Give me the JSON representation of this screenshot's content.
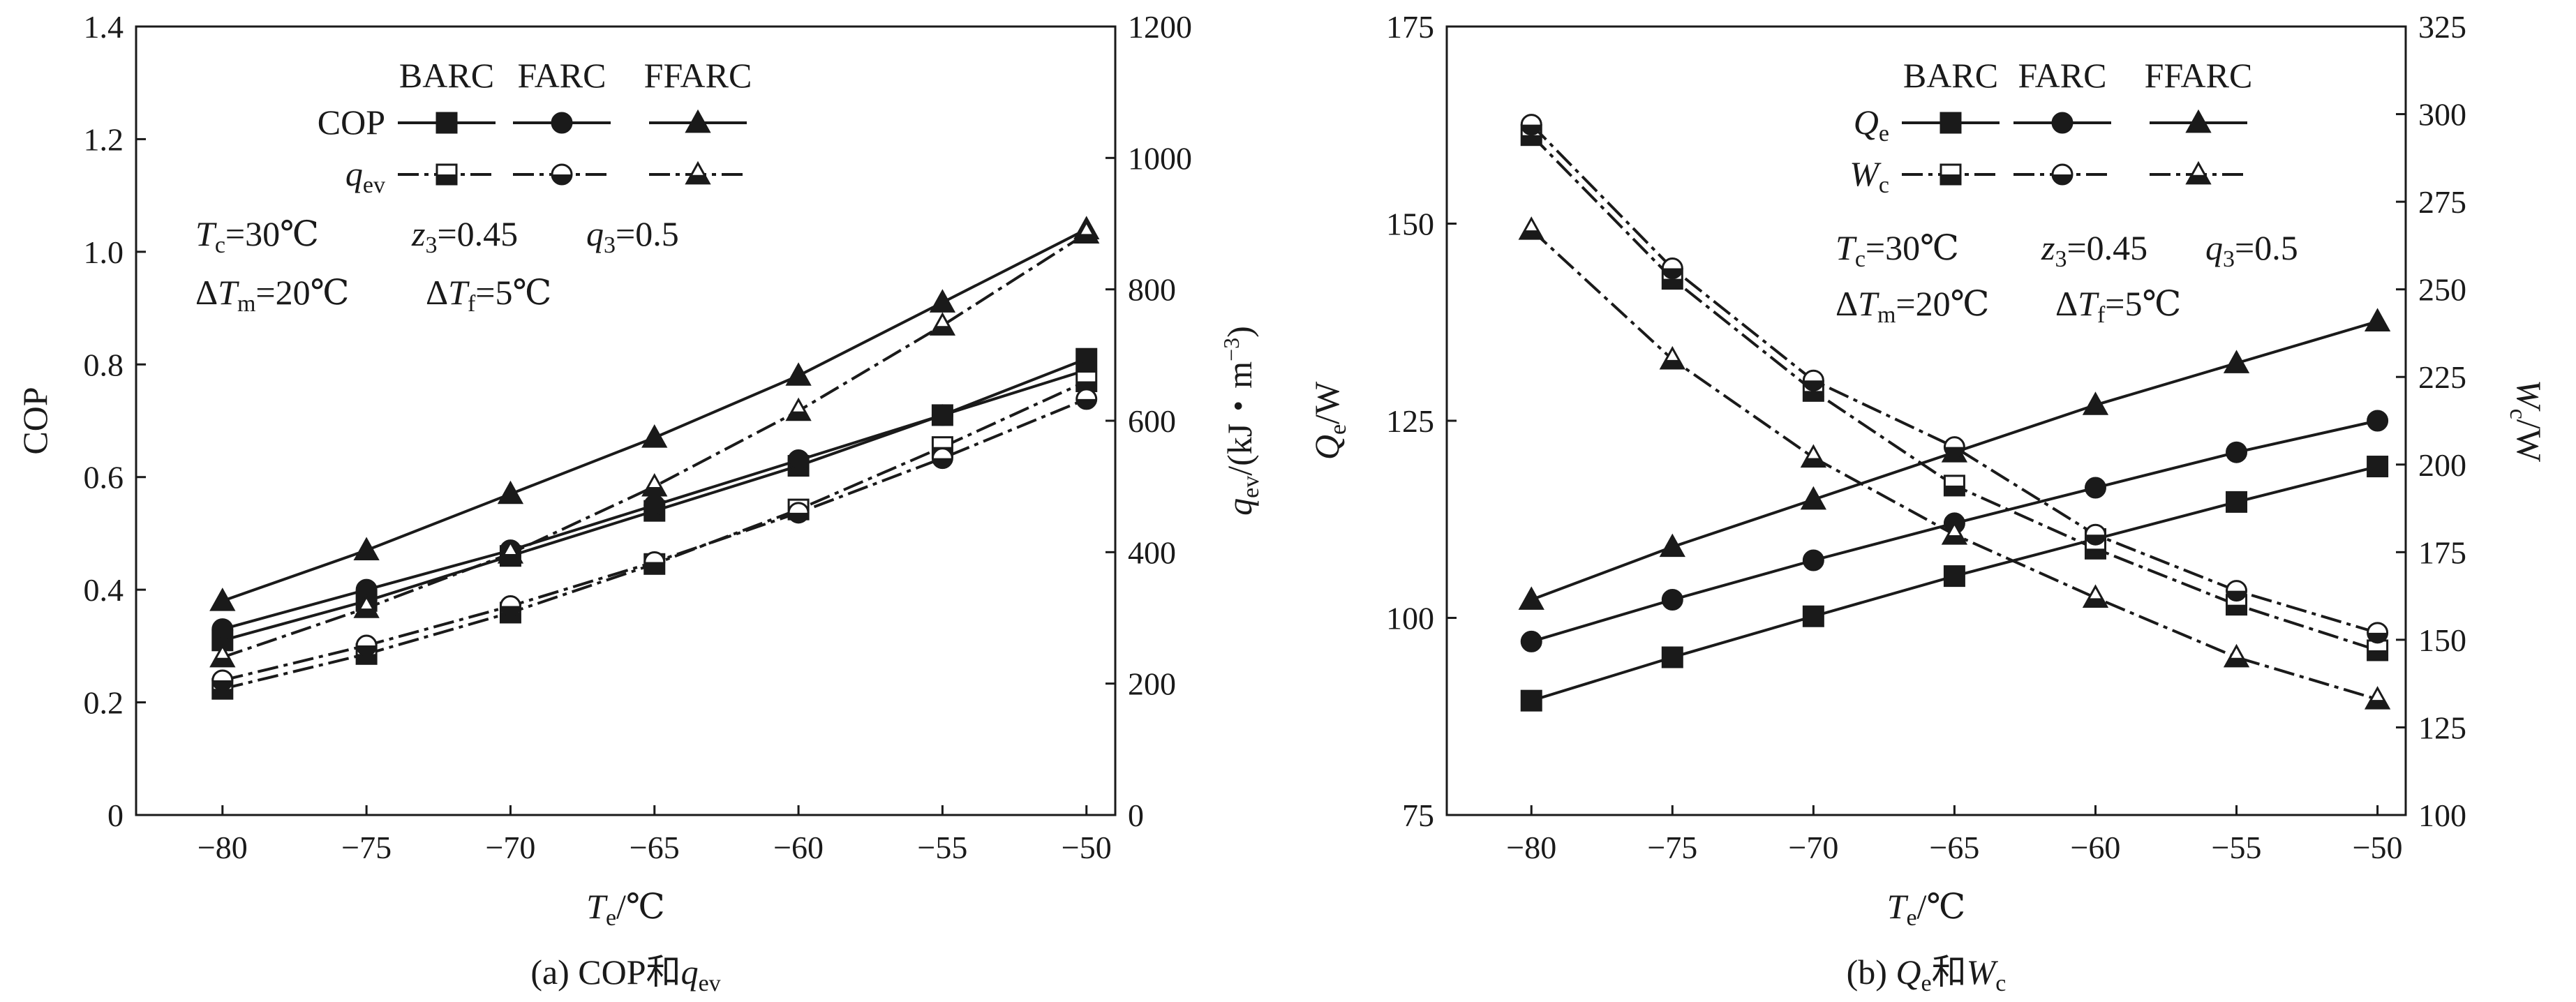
{
  "chart_data": [
    {
      "panel": "a",
      "type": "line",
      "caption": {
        "prefix": "(a) COP和",
        "var": "q",
        "sub": "ev"
      },
      "x": [
        -80,
        -75,
        -70,
        -65,
        -60,
        -55,
        -50
      ],
      "xlim": [
        -83,
        -49
      ],
      "x_ticks": [
        -80,
        -75,
        -70,
        -65,
        -60,
        -55,
        -50
      ],
      "xlabel": {
        "var": "T",
        "sub": "e",
        "rest": "/℃"
      },
      "y_left": {
        "label": "COP",
        "lim": [
          0,
          1.4
        ],
        "ticks": [
          "0",
          "0.2",
          "0.4",
          "0.6",
          "0.8",
          "1.0",
          "1.2",
          "1.4"
        ]
      },
      "y_right": {
        "label_var": "q",
        "label_sub": "ev",
        "label_rest": "/(kJ・m",
        "label_sup": "−3",
        "label_close": ")",
        "lim": [
          0,
          1200
        ],
        "ticks": [
          "0",
          "200",
          "400",
          "600",
          "800",
          "1000",
          "1200"
        ]
      },
      "legend": {
        "columns": [
          "BARC",
          "FARC",
          "FFARC"
        ],
        "rows": [
          {
            "label_var": "COP",
            "label_sub": "",
            "style": "solid"
          },
          {
            "label_var": "q",
            "label_sub": "ev",
            "style": "dashdot"
          }
        ]
      },
      "annotations": {
        "line1": [
          {
            "var": "T",
            "sub": "c",
            "rest": "=30℃"
          },
          {
            "var": "z",
            "sub": "3",
            "rest": "=0.45"
          },
          {
            "var": "q",
            "sub": "3",
            "rest": "=0.5"
          }
        ],
        "line2": [
          {
            "pre": "Δ",
            "var": "T",
            "sub": "m",
            "rest": "=20℃"
          },
          {
            "pre": "Δ",
            "var": "T",
            "sub": "f",
            "rest": "=5℃"
          }
        ]
      },
      "series": [
        {
          "name": "COP BARC",
          "axis": "left",
          "style": "solid",
          "marker": "square",
          "filled": true,
          "values": [
            0.31,
            0.38,
            0.46,
            0.54,
            0.62,
            0.71,
            0.81
          ]
        },
        {
          "name": "COP FARC",
          "axis": "left",
          "style": "solid",
          "marker": "circle",
          "filled": true,
          "values": [
            0.33,
            0.4,
            0.47,
            0.55,
            0.63,
            0.71,
            0.79
          ]
        },
        {
          "name": "COP FFARC",
          "axis": "left",
          "style": "solid",
          "marker": "triangle",
          "filled": true,
          "values": [
            0.38,
            0.47,
            0.57,
            0.67,
            0.78,
            0.91,
            1.04
          ]
        },
        {
          "name": "qev BARC",
          "axis": "right",
          "style": "dashdot",
          "marker": "square",
          "filled": false,
          "values": [
            192,
            245,
            308,
            382,
            465,
            560,
            660
          ]
        },
        {
          "name": "qev FARC",
          "axis": "right",
          "style": "dashdot",
          "marker": "circle",
          "filled": false,
          "values": [
            205,
            258,
            318,
            385,
            460,
            543,
            633
          ]
        },
        {
          "name": "qev FFARC",
          "axis": "right",
          "style": "dashdot",
          "marker": "triangle",
          "filled": false,
          "values": [
            240,
            315,
            398,
            500,
            615,
            745,
            885
          ]
        }
      ]
    },
    {
      "panel": "b",
      "type": "line",
      "caption": {
        "prefix": "(b) ",
        "var1": "Q",
        "sub1": "e",
        "mid": "和",
        "var2": "W",
        "sub2": "c"
      },
      "x": [
        -80,
        -75,
        -70,
        -65,
        -60,
        -55,
        -50
      ],
      "xlim": [
        -83,
        -49
      ],
      "x_ticks": [
        -80,
        -75,
        -70,
        -65,
        -60,
        -55,
        -50
      ],
      "xlabel": {
        "var": "T",
        "sub": "e",
        "rest": "/℃"
      },
      "y_left": {
        "label_var": "Q",
        "label_sub": "e",
        "label_rest": "/W",
        "lim": [
          75,
          175
        ],
        "ticks": [
          "75",
          "100",
          "125",
          "150",
          "175"
        ]
      },
      "y_right": {
        "label_var": "W",
        "label_sub": "c",
        "label_rest": "/W",
        "lim": [
          100,
          325
        ],
        "ticks": [
          "100",
          "125",
          "150",
          "175",
          "200",
          "225",
          "250",
          "275",
          "300",
          "325"
        ]
      },
      "legend": {
        "columns": [
          "BARC",
          "FARC",
          "FFARC"
        ],
        "rows": [
          {
            "label_var": "Q",
            "label_sub": "e",
            "style": "solid"
          },
          {
            "label_var": "W",
            "label_sub": "c",
            "style": "dashdot"
          }
        ]
      },
      "annotations": {
        "line1": [
          {
            "var": "T",
            "sub": "c",
            "rest": "=30℃"
          },
          {
            "var": "z",
            "sub": "3",
            "rest": "=0.45"
          },
          {
            "var": "q",
            "sub": "3",
            "rest": "=0.5"
          }
        ],
        "line2": [
          {
            "pre": "Δ",
            "var": "T",
            "sub": "m",
            "rest": "=20℃"
          },
          {
            "pre": "Δ",
            "var": "T",
            "sub": "f",
            "rest": "=5℃"
          }
        ]
      },
      "series": [
        {
          "name": "Qe BARC",
          "axis": "left",
          "style": "solid",
          "marker": "square",
          "filled": true,
          "values": [
            89.5,
            95,
            100.2,
            105.3,
            110,
            114.7,
            119.2
          ]
        },
        {
          "name": "Qe FARC",
          "axis": "left",
          "style": "solid",
          "marker": "circle",
          "filled": true,
          "values": [
            97,
            102.3,
            107.3,
            112,
            116.5,
            121,
            125
          ]
        },
        {
          "name": "Qe FFARC",
          "axis": "left",
          "style": "solid",
          "marker": "triangle",
          "filled": true,
          "values": [
            102.3,
            109,
            115,
            121,
            127,
            132.3,
            137.6
          ]
        },
        {
          "name": "Wc BARC",
          "axis": "right",
          "style": "dashdot",
          "marker": "square",
          "filled": false,
          "values": [
            294,
            253,
            221,
            194,
            176,
            160,
            147
          ]
        },
        {
          "name": "Wc FARC",
          "axis": "right",
          "style": "dashdot",
          "marker": "circle",
          "filled": false,
          "values": [
            297,
            256,
            224,
            205,
            180,
            164,
            152
          ]
        },
        {
          "name": "Wc FFARC",
          "axis": "right",
          "style": "dashdot",
          "marker": "triangle",
          "filled": false,
          "values": [
            267,
            230,
            202,
            180,
            162,
            145,
            133
          ]
        }
      ]
    }
  ]
}
